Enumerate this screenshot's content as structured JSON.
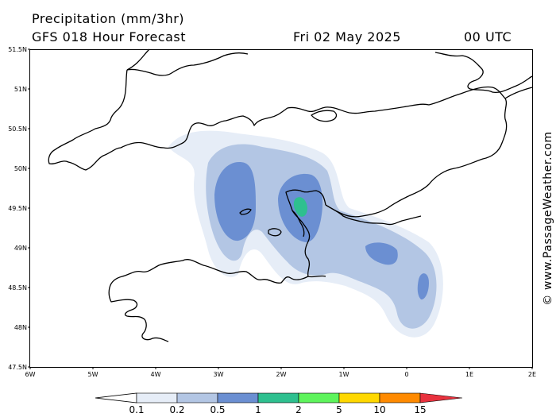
{
  "header": {
    "title": "Precipitation (mm/3hr)",
    "subtitle": "GFS 018 Hour Forecast",
    "date": "Fri 02 May 2025",
    "time": "00 UTC"
  },
  "map": {
    "lat_labels": [
      "51.5N",
      "51N",
      "50.5N",
      "50N",
      "49.5N",
      "49N",
      "48.5N",
      "48N",
      "47.5N"
    ],
    "lon_labels": [
      "6W",
      "5W",
      "4W",
      "3W",
      "2W",
      "1W",
      "0",
      "1E",
      "2E"
    ],
    "lat_range": [
      47.5,
      51.5
    ],
    "lon_range": [
      -6,
      2
    ]
  },
  "watermark": "© www.PassageWeather.com",
  "legend": {
    "labels": [
      "0.1",
      "0.2",
      "0.5",
      "1",
      "2",
      "5",
      "10",
      "15"
    ],
    "colors": [
      "#e6edf7",
      "#b3c6e4",
      "#6b8fd2",
      "#2ec08f",
      "#5ef45c",
      "#ffd800",
      "#ff8a00",
      "#e8323e"
    ]
  },
  "colors": {
    "land_outline": "#000000",
    "frame": "#000000"
  }
}
